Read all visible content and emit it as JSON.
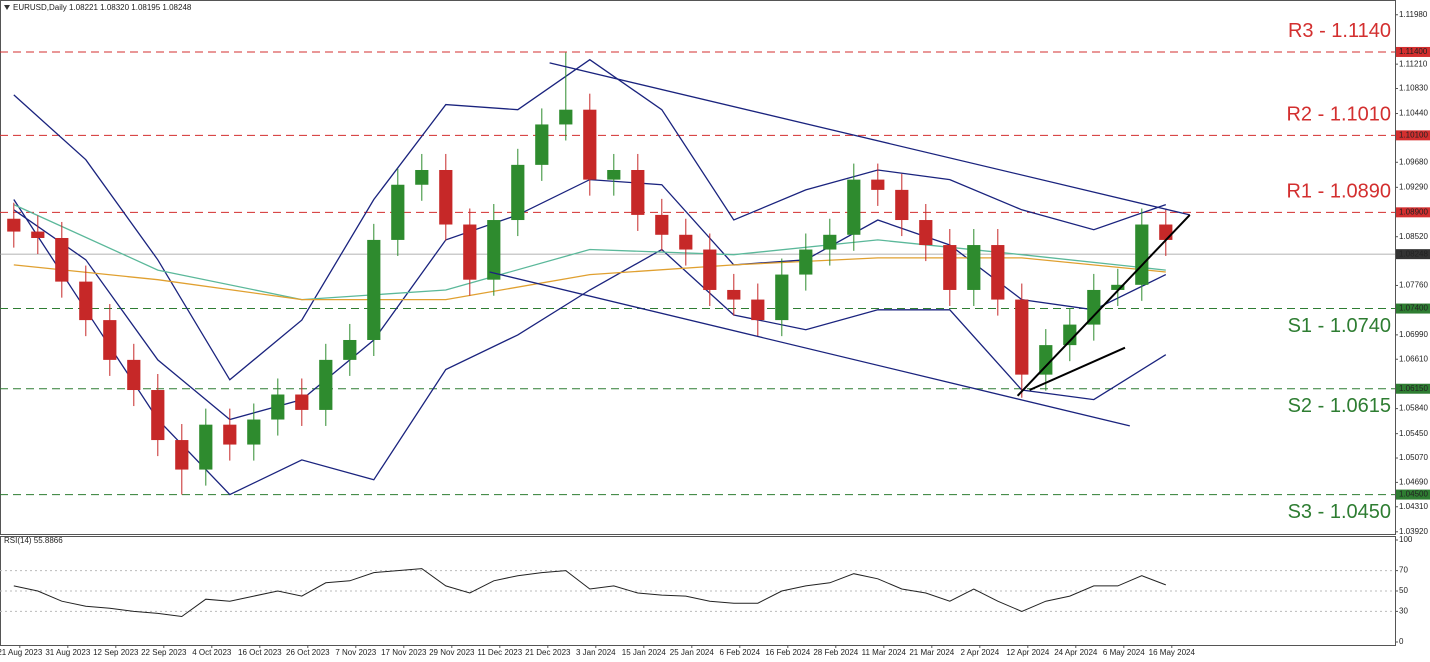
{
  "chart_data": {
    "type": "candlestick",
    "title": "EURUSD,Daily  1.08221 1.08320 1.08195 1.08248",
    "xlim": [
      -0.8,
      231.7
    ],
    "ylim": [
      1.0387,
      1.1221
    ],
    "xticks": [
      {
        "value": 2.5,
        "label": "21 Aug 2023"
      },
      {
        "value": 10.5,
        "label": "31 Aug 2023"
      },
      {
        "value": 18.5,
        "label": "12 Sep 2023"
      },
      {
        "value": 26.5,
        "label": "22 Sep 2023"
      },
      {
        "value": 34.5,
        "label": "4 Oct 2023"
      },
      {
        "value": 42.5,
        "label": "16 Oct 2023"
      },
      {
        "value": 50.5,
        "label": "26 Oct 2023"
      },
      {
        "value": 58.5,
        "label": "7 Nov 2023"
      },
      {
        "value": 66.5,
        "label": "17 Nov 2023"
      },
      {
        "value": 74.5,
        "label": "29 Nov 2023"
      },
      {
        "value": 82.5,
        "label": "11 Dec 2023"
      },
      {
        "value": 90.5,
        "label": "21 Dec 2023"
      },
      {
        "value": 98.5,
        "label": "3 Jan 2024"
      },
      {
        "value": 106.5,
        "label": "15 Jan 2024"
      },
      {
        "value": 114.5,
        "label": "25 Jan 2024"
      },
      {
        "value": 122.5,
        "label": "6 Feb 2024"
      },
      {
        "value": 130.5,
        "label": "16 Feb 2024"
      },
      {
        "value": 138.5,
        "label": "28 Feb 2024"
      },
      {
        "value": 146.5,
        "label": "11 Mar 2024"
      },
      {
        "value": 154.5,
        "label": "21 Mar 2024"
      },
      {
        "value": 162.5,
        "label": "2 Apr 2024"
      },
      {
        "value": 170.5,
        "label": "12 Apr 2024"
      },
      {
        "value": 178.5,
        "label": "24 Apr 2024"
      },
      {
        "value": 186.5,
        "label": "6 May 2024"
      },
      {
        "value": 194.5,
        "label": "16 May 2024"
      }
    ],
    "yticks": [
      {
        "value": 1.1198,
        "label": "1.11980"
      },
      {
        "value": 1.1121,
        "label": "1.11210"
      },
      {
        "value": 1.1083,
        "label": "1.10830"
      },
      {
        "value": 1.1044,
        "label": "1.10440"
      },
      {
        "value": 1.0968,
        "label": "1.09680"
      },
      {
        "value": 1.0929,
        "label": "1.09290"
      },
      {
        "value": 1.0852,
        "label": "1.08520"
      },
      {
        "value": 1.0776,
        "label": "1.07760"
      },
      {
        "value": 1.0699,
        "label": "1.06990"
      },
      {
        "value": 1.0661,
        "label": "1.06610"
      },
      {
        "value": 1.0584,
        "label": "1.05840"
      },
      {
        "value": 1.0545,
        "label": "1.05450"
      },
      {
        "value": 1.0507,
        "label": "1.05070"
      },
      {
        "value": 1.0469,
        "label": "1.04690"
      },
      {
        "value": 1.0431,
        "label": "1.04310"
      },
      {
        "value": 1.0392,
        "label": "1.03920"
      }
    ],
    "last_price": {
      "value": 1.08248,
      "label": "1.08248"
    },
    "levels": [
      {
        "label": "R3 - 1.1140",
        "value": 1.114,
        "tick_label": "1.11400",
        "color": "#d32f2f"
      },
      {
        "label": "R2 - 1.1010",
        "value": 1.101,
        "tick_label": "1.10100",
        "color": "#d32f2f"
      },
      {
        "label": "R1 - 1.0890",
        "value": 1.089,
        "tick_label": "1.08900",
        "color": "#d32f2f"
      },
      {
        "label": "S1 - 1.0740",
        "value": 1.074,
        "tick_label": "1.07400",
        "color": "#2e7d32"
      },
      {
        "label": "S2 - 1.0615",
        "value": 1.0615,
        "tick_label": "1.06150",
        "color": "#2e7d32"
      },
      {
        "label": "S3 - 1.0450",
        "value": 1.045,
        "tick_label": "1.04500",
        "color": "#2e7d32"
      }
    ],
    "up_color": "#2e8b2e",
    "down_color": "#c62828",
    "candles": {
      "x": [
        1.5,
        5.5,
        9.5,
        13.5,
        17.5,
        21.5,
        25.5,
        29.5,
        33.5,
        37.5,
        41.5,
        45.5,
        49.5,
        53.5,
        57.5,
        61.5,
        65.5,
        69.5,
        73.5,
        77.5,
        81.5,
        85.5,
        89.5,
        93.5,
        97.5,
        101.5,
        105.5,
        109.5,
        113.5,
        117.5,
        121.5,
        125.5,
        129.5,
        133.5,
        137.5,
        141.5,
        145.5,
        149.5,
        153.5,
        157.5,
        161.5,
        165.5,
        169.5,
        173.5,
        177.5,
        181.5,
        185.5,
        189.5,
        193.5
      ],
      "open": [
        1.088,
        1.086,
        1.085,
        1.0782,
        1.0722,
        1.066,
        1.0613,
        1.0535,
        1.0489,
        1.0559,
        1.0528,
        1.0567,
        1.0606,
        1.0582,
        1.066,
        1.0691,
        1.0847,
        1.0933,
        1.0956,
        1.0871,
        1.0785,
        1.0878,
        1.0964,
        1.1027,
        1.105,
        1.0941,
        1.0956,
        1.0886,
        1.0855,
        1.0832,
        1.0769,
        1.0754,
        1.0722,
        1.0793,
        1.0832,
        1.0855,
        1.0941,
        1.0925,
        1.0878,
        1.0839,
        1.0769,
        1.0839,
        1.0754,
        1.0637,
        1.0683,
        1.0715,
        1.0769,
        1.0777,
        1.0871
      ],
      "high": [
        1.0905,
        1.0885,
        1.0875,
        1.0807,
        1.0747,
        1.0685,
        1.0638,
        1.056,
        1.0584,
        1.0584,
        1.0592,
        1.0631,
        1.0631,
        1.0685,
        1.0716,
        1.0872,
        1.0958,
        1.0981,
        1.0981,
        1.0896,
        1.0903,
        1.0989,
        1.1052,
        1.1139,
        1.1075,
        1.0981,
        1.0981,
        1.0911,
        1.088,
        1.0857,
        1.0794,
        1.0779,
        1.0818,
        1.0857,
        1.088,
        1.0966,
        1.0966,
        1.095,
        1.0903,
        1.0864,
        1.0864,
        1.0864,
        1.0779,
        1.0708,
        1.074,
        1.0794,
        1.0802,
        1.0896,
        1.0896
      ],
      "low": [
        1.0835,
        1.0825,
        1.0757,
        1.0697,
        1.0635,
        1.0588,
        1.051,
        1.045,
        1.0464,
        1.0503,
        1.0503,
        1.0542,
        1.0557,
        1.0557,
        1.0635,
        1.0666,
        1.0822,
        1.0908,
        1.0846,
        1.076,
        1.076,
        1.0853,
        1.0939,
        1.1002,
        1.0916,
        1.0916,
        1.0861,
        1.083,
        1.0807,
        1.0744,
        1.0729,
        1.0697,
        1.0697,
        1.0768,
        1.0807,
        1.083,
        1.09,
        1.0853,
        1.0814,
        1.0744,
        1.0744,
        1.0729,
        1.0601,
        1.0612,
        1.0658,
        1.069,
        1.0744,
        1.0752,
        1.0822
      ],
      "close": [
        1.086,
        1.085,
        1.0782,
        1.0722,
        1.066,
        1.0613,
        1.0535,
        1.0489,
        1.0559,
        1.0528,
        1.0567,
        1.0606,
        1.0582,
        1.066,
        1.0691,
        1.0847,
        1.0933,
        1.0956,
        1.0871,
        1.0785,
        1.0878,
        1.0964,
        1.1027,
        1.105,
        1.0941,
        1.0956,
        1.0886,
        1.0855,
        1.0832,
        1.0769,
        1.0754,
        1.0722,
        1.0793,
        1.0832,
        1.0855,
        1.0941,
        1.0925,
        1.0878,
        1.0839,
        1.0769,
        1.0839,
        1.0754,
        1.0637,
        1.0683,
        1.0715,
        1.0769,
        1.0777,
        1.0871,
        1.0847
      ]
    },
    "indicators": [
      {
        "color": "#1a237e",
        "x": [
          1.5,
          13.5,
          25.5,
          37.5,
          49.5,
          61.5,
          73.5,
          85.5,
          97.5,
          109.5,
          121.5,
          133.5,
          145.5,
          157.5,
          169.5,
          181.5,
          193.5
        ],
        "values": [
          1.1073,
          1.0972,
          1.0816,
          1.0629,
          1.0722,
          1.091,
          1.1058,
          1.105,
          1.1128,
          1.105,
          1.0878,
          1.0925,
          1.0956,
          1.0941,
          1.0894,
          1.0863,
          1.0902
        ]
      },
      {
        "color": "#1a237e",
        "x": [
          1.5,
          13.5,
          25.5,
          37.5,
          49.5,
          61.5,
          73.5,
          85.5,
          97.5,
          109.5,
          121.5,
          133.5,
          145.5,
          157.5,
          169.5,
          181.5,
          193.5
        ],
        "values": [
          1.0894,
          1.0816,
          1.066,
          1.0567,
          1.0598,
          1.0691,
          1.0847,
          1.0886,
          1.0941,
          1.0933,
          1.0808,
          1.0816,
          1.0878,
          1.0839,
          1.0754,
          1.0738,
          1.0793
        ]
      },
      {
        "color": "#1a237e",
        "x": [
          1.5,
          13.5,
          25.5,
          37.5,
          49.5,
          61.5,
          73.5,
          85.5,
          97.5,
          109.5,
          121.5,
          133.5,
          145.5,
          157.5,
          169.5,
          181.5,
          193.5
        ],
        "values": [
          1.091,
          1.0738,
          1.0567,
          1.045,
          1.0504,
          1.0473,
          1.0645,
          1.0699,
          1.0769,
          1.0832,
          1.073,
          1.0707,
          1.0738,
          1.0738,
          1.0613,
          1.0598,
          1.0668
        ]
      },
      {
        "color": "#5bb89a",
        "x": [
          1.5,
          25.5,
          49.5,
          73.5,
          97.5,
          121.5,
          145.5,
          169.5,
          193.5
        ],
        "values": [
          1.0902,
          1.08,
          1.0754,
          1.0769,
          1.0832,
          1.0824,
          1.0847,
          1.0824,
          1.08
        ]
      },
      {
        "color": "#e0a030",
        "x": [
          1.5,
          25.5,
          49.5,
          73.5,
          97.5,
          121.5,
          145.5,
          169.5,
          193.5
        ],
        "values": [
          1.0808,
          1.0785,
          1.0754,
          1.0754,
          1.0793,
          1.0808,
          1.0819,
          1.0819,
          1.0797
        ]
      }
    ],
    "trendlines": [
      {
        "color": "#1a237e",
        "x": [
          90.8,
          197.5
        ],
        "values": [
          1.1123,
          1.0886
        ]
      },
      {
        "color": "#1a237e",
        "x": [
          80.8,
          187.5
        ],
        "values": [
          1.0797,
          1.0557
        ]
      },
      {
        "color": "#000000",
        "x": [
          168.8,
          197.5
        ],
        "values": [
          1.0604,
          1.0886
        ]
      },
      {
        "color": "#000000",
        "x": [
          170.8,
          186.7
        ],
        "values": [
          1.0613,
          1.0679
        ]
      }
    ],
    "rsi": {
      "title": "RSI(14) 55.8866",
      "color": "#222222",
      "ylim": [
        0,
        100
      ],
      "yticks": [
        0,
        30,
        50,
        70,
        100
      ],
      "x": [
        1.5,
        5.5,
        9.5,
        13.5,
        17.5,
        21.5,
        25.5,
        29.5,
        33.5,
        37.5,
        41.5,
        45.5,
        49.5,
        53.5,
        57.5,
        61.5,
        65.5,
        69.5,
        73.5,
        77.5,
        81.5,
        85.5,
        89.5,
        93.5,
        97.5,
        101.5,
        105.5,
        109.5,
        113.5,
        117.5,
        121.5,
        125.5,
        129.5,
        133.5,
        137.5,
        141.5,
        145.5,
        149.5,
        153.5,
        157.5,
        161.5,
        165.5,
        169.5,
        173.5,
        177.5,
        181.5,
        185.5,
        189.5,
        193.5
      ],
      "values": [
        55,
        50,
        40,
        35,
        33,
        30,
        28,
        25,
        42,
        40,
        45,
        50,
        45,
        58,
        60,
        68,
        70,
        72,
        55,
        48,
        60,
        65,
        68,
        70,
        52,
        55,
        48,
        46,
        45,
        40,
        38,
        38,
        50,
        55,
        58,
        67,
        62,
        52,
        48,
        40,
        52,
        40,
        30,
        40,
        45,
        55,
        55,
        65,
        56
      ]
    }
  }
}
